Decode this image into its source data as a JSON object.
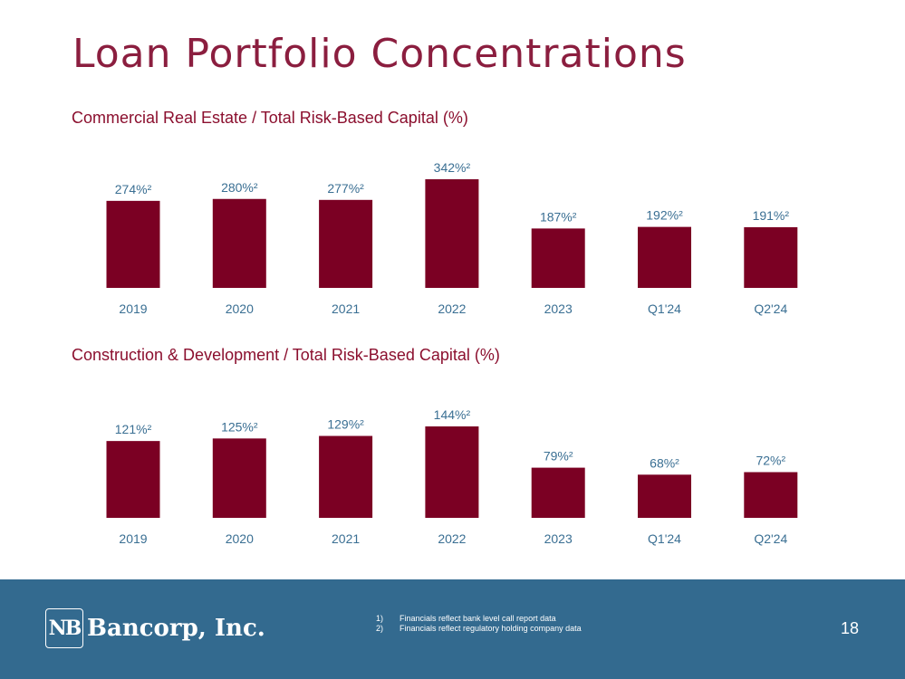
{
  "page": {
    "title": "Loan Portfolio Concentrations",
    "page_number": "18"
  },
  "colors": {
    "bar": "#7b0023",
    "value_label": "#3a6f93",
    "axis_label": "#3a6f93",
    "footer_bg": "#336a8f"
  },
  "footer": {
    "logo_mark": "NB",
    "logo_text": "Bancorp, Inc.",
    "notes": [
      {
        "num": "1)",
        "text": "Financials reflect bank level call report data"
      },
      {
        "num": "2)",
        "text": "Financials reflect regulatory holding company data"
      }
    ]
  },
  "chart_data": [
    {
      "type": "bar",
      "title": "Commercial Real Estate / Total Risk-Based Capital (%)",
      "categories": [
        "2019",
        "2020",
        "2021",
        "2022",
        "2023",
        "Q1'24",
        "Q2'24"
      ],
      "values": [
        274,
        280,
        277,
        342,
        187,
        192,
        191
      ],
      "value_labels": [
        "274%²",
        "280%²",
        "277%²",
        "342%²",
        "187%²",
        "192%²",
        "191%²"
      ],
      "xlabel": "",
      "ylabel": "",
      "ylim": [
        0,
        342
      ],
      "grid": false
    },
    {
      "type": "bar",
      "title": "Construction & Development / Total Risk-Based Capital (%)",
      "categories": [
        "2019",
        "2020",
        "2021",
        "2022",
        "2023",
        "Q1'24",
        "Q2'24"
      ],
      "values": [
        121,
        125,
        129,
        144,
        79,
        68,
        72
      ],
      "value_labels": [
        "121%²",
        "125%²",
        "129%²",
        "144%²",
        "79%²",
        "68%²",
        "72%²"
      ],
      "xlabel": "",
      "ylabel": "",
      "ylim": [
        0,
        144
      ],
      "grid": false
    }
  ]
}
